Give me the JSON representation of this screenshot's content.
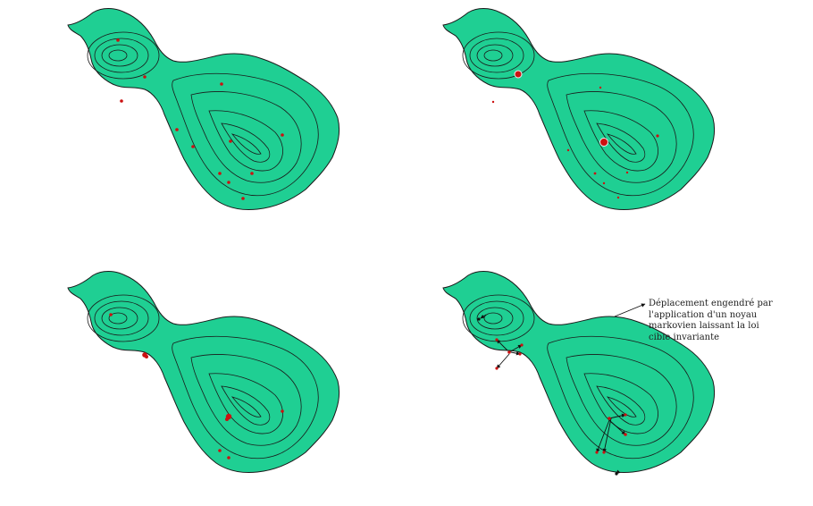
{
  "figure": {
    "background": "#ffffff",
    "region_fill": "#1fcf93",
    "region_stroke": "#1a1a1a",
    "contour_stroke": "#1a1a1a",
    "particle_color": "#cc1111",
    "arrow_color": "#111111",
    "panels": [
      {
        "name": "panel-initial-particles",
        "particles": [
          {
            "w": 1
          },
          {
            "w": 1
          },
          {
            "w": 1
          },
          {
            "w": 1
          },
          {
            "w": 1
          },
          {
            "w": 1
          },
          {
            "w": 1
          },
          {
            "w": 1
          },
          {
            "w": 1
          },
          {
            "w": 1
          },
          {
            "w": 1
          },
          {
            "w": 1
          }
        ]
      },
      {
        "name": "panel-weighted-particles",
        "particles": [
          {
            "w": 2.2
          },
          {
            "w": 0.6
          },
          {
            "w": 0.6
          },
          {
            "w": 2.5
          },
          {
            "w": 0.8
          },
          {
            "w": 0.6
          },
          {
            "w": 0.7
          },
          {
            "w": 0.6
          },
          {
            "w": 0.6
          },
          {
            "w": 0.6
          }
        ]
      },
      {
        "name": "panel-resampled-particles",
        "particles": [
          {
            "w": 1
          },
          {
            "w": 1.6
          },
          {
            "w": 1.8
          },
          {
            "w": 1
          },
          {
            "w": 1
          },
          {
            "w": 1
          }
        ]
      },
      {
        "name": "panel-mcmc-moves",
        "particles": [
          {
            "w": 1
          },
          {
            "w": 1
          },
          {
            "w": 1
          },
          {
            "w": 1
          },
          {
            "w": 1
          },
          {
            "w": 1
          },
          {
            "w": 1
          },
          {
            "w": 1
          },
          {
            "w": 1
          },
          {
            "w": 1
          },
          {
            "w": 1
          },
          {
            "w": 1
          }
        ]
      }
    ]
  },
  "annotation": {
    "lines": [
      "Déplacement engendré par",
      "l'application d'un noyau",
      "markovien laissant la loi",
      "cible invariante"
    ]
  }
}
